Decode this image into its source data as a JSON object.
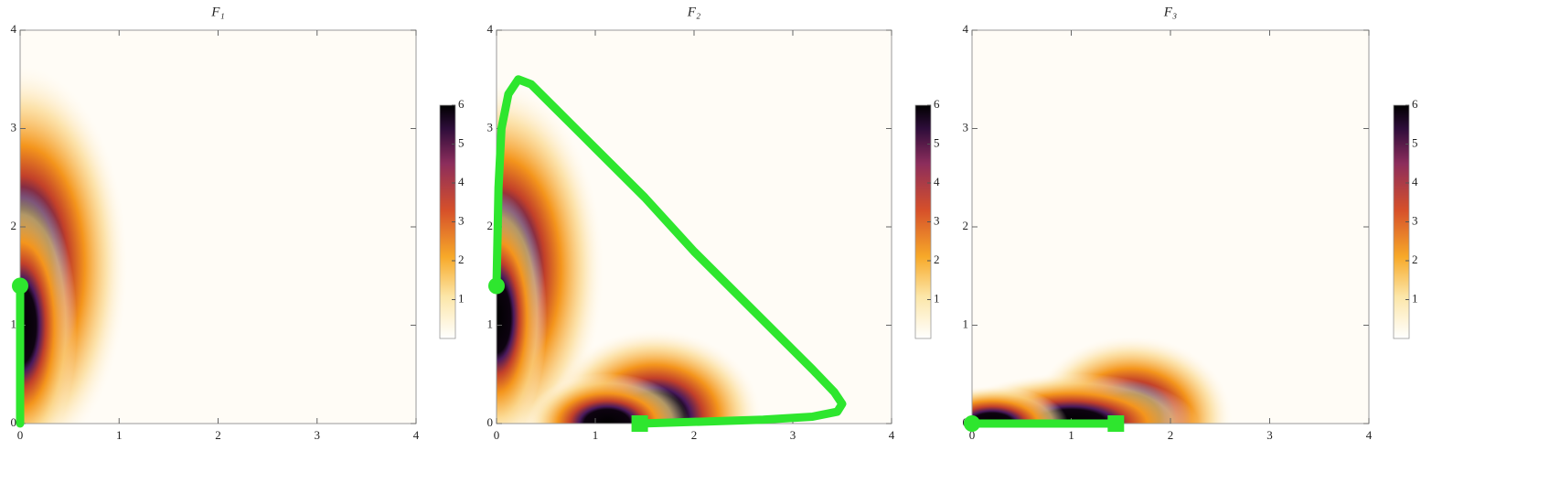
{
  "chart_data": [
    {
      "type": "density",
      "title": "F₁",
      "xlim": [
        0,
        4
      ],
      "ylim": [
        0,
        4
      ],
      "xticks": [
        0,
        1,
        2,
        3,
        4
      ],
      "yticks": [
        0,
        1,
        2,
        3,
        4
      ],
      "clim": [
        0,
        6
      ],
      "cticks": [
        1,
        2,
        3,
        4,
        5,
        6
      ],
      "series": [
        {
          "color": "#2ee62e",
          "start_marker": "circle",
          "end_marker": "none",
          "x": [
            0,
            0
          ],
          "y": [
            1.4,
            0
          ]
        }
      ]
    },
    {
      "type": "density",
      "title": "F₂",
      "xlim": [
        0,
        4
      ],
      "ylim": [
        0,
        4
      ],
      "xticks": [
        0,
        1,
        2,
        3,
        4
      ],
      "yticks": [
        0,
        1,
        2,
        3,
        4
      ],
      "clim": [
        0,
        6
      ],
      "cticks": [
        1,
        2,
        3,
        4,
        5,
        6
      ],
      "series": [
        {
          "color": "#2ee62e",
          "start_marker": "circle",
          "end_marker": "square",
          "x": [
            0,
            0.02,
            0.05,
            0.12,
            0.22,
            0.35,
            0.6,
            1.0,
            1.5,
            2.0,
            2.5,
            2.9,
            3.2,
            3.42,
            3.5,
            3.45,
            3.2,
            2.7,
            2.1,
            1.45
          ],
          "y": [
            1.4,
            2.4,
            3.0,
            3.35,
            3.5,
            3.45,
            3.2,
            2.8,
            2.3,
            1.75,
            1.25,
            0.85,
            0.55,
            0.32,
            0.2,
            0.12,
            0.07,
            0.04,
            0.02,
            0
          ]
        }
      ]
    },
    {
      "type": "density",
      "title": "F₃",
      "xlim": [
        0,
        4
      ],
      "ylim": [
        0,
        4
      ],
      "xticks": [
        0,
        1,
        2,
        3,
        4
      ],
      "yticks": [
        0,
        1,
        2,
        3,
        4
      ],
      "clim": [
        0,
        6
      ],
      "cticks": [
        1,
        2,
        3,
        4,
        5,
        6
      ],
      "series": [
        {
          "color": "#2ee62e",
          "start_marker": "circle",
          "end_marker": "square",
          "x": [
            0,
            1.45
          ],
          "y": [
            0,
            0
          ]
        }
      ]
    }
  ]
}
